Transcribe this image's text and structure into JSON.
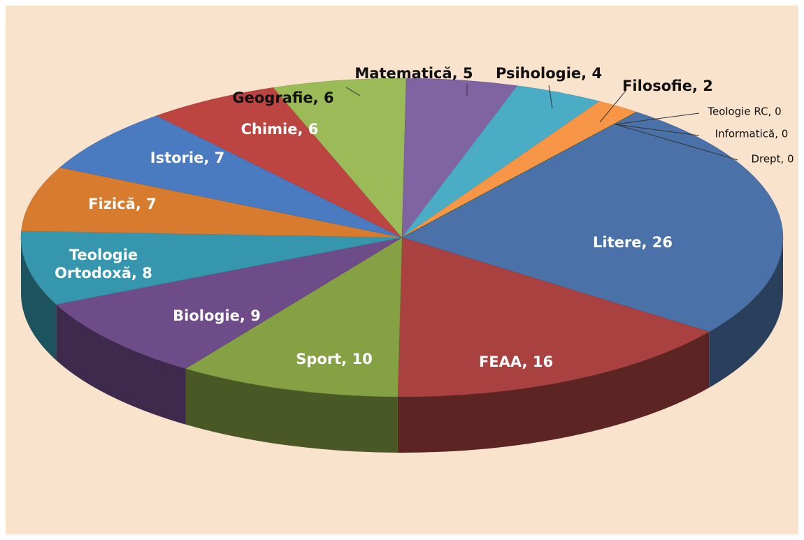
{
  "chart_data": {
    "type": "pie",
    "categories": [
      "Litere",
      "FEAA",
      "Sport",
      "Biologie",
      "Teologie Ortodoxă",
      "Fizică",
      "Istorie",
      "Chimie",
      "Geografie",
      "Matematică",
      "Psihologie",
      "Filosofie",
      "Teologie RC",
      "Informatică",
      "Drept"
    ],
    "values": [
      26,
      16,
      10,
      9,
      8,
      7,
      7,
      6,
      6,
      5,
      4,
      2,
      0,
      0,
      0
    ],
    "label_separator": ", ",
    "colors": [
      "#4a72a8",
      "#a8413f",
      "#86a044",
      "#6e4c8a",
      "#3596ad",
      "#d77b2f",
      "#4a7bc0",
      "#bc4542",
      "#9bbb59",
      "#8064a2",
      "#4bacc6",
      "#f79646",
      "#2c4d75",
      "#772c2a",
      "#5f7530"
    ]
  }
}
